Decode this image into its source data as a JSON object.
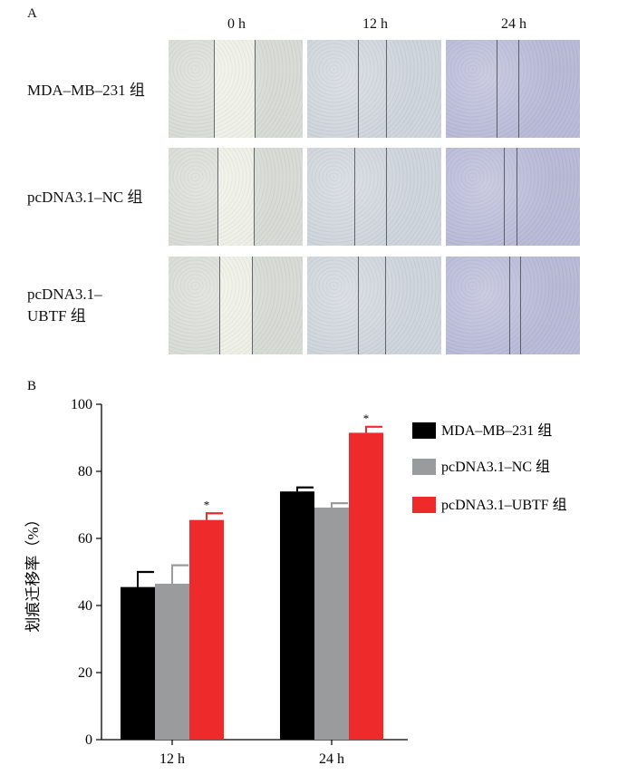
{
  "panel_a": {
    "label": "A",
    "time_points": [
      "0  h",
      "12 h",
      "24 h"
    ],
    "rows": [
      {
        "name_lines": [
          "MDA–MB–231 组"
        ]
      },
      {
        "name_lines": [
          "pcDNA3.1–NC 组"
        ]
      },
      {
        "name_lines": [
          "pcDNA3.1–",
          "UBTF 组"
        ]
      }
    ],
    "tint_colors": [
      "#d9dcd6",
      "#cfd5dc",
      "#b9bbd8"
    ],
    "gap_color": "#eef0e6"
  },
  "chart_data": {
    "panel_label": "B",
    "type": "bar",
    "categories": [
      "12 h",
      "24 h"
    ],
    "ylabel": "划痕迁移率（%）",
    "ylim": [
      0,
      100
    ],
    "yticks": [
      0,
      20,
      40,
      60,
      80,
      100
    ],
    "legend_position": "right",
    "series": [
      {
        "name": "MDA–MB–231 组",
        "color": "#000000",
        "values": [
          45.5,
          74
        ],
        "errors": [
          4.5,
          1.2
        ],
        "significance": [
          "",
          ""
        ]
      },
      {
        "name": "pcDNA3.1–NC 组",
        "color": "#9a9b9d",
        "values": [
          46.5,
          69.2
        ],
        "errors": [
          5.5,
          1.3
        ],
        "significance": [
          "",
          ""
        ]
      },
      {
        "name": "pcDNA3.1–UBTF 组",
        "color": "#ee2a2a",
        "values": [
          65.5,
          91.5
        ],
        "errors": [
          2,
          1.8
        ],
        "significance": [
          "*",
          "*"
        ]
      }
    ]
  }
}
